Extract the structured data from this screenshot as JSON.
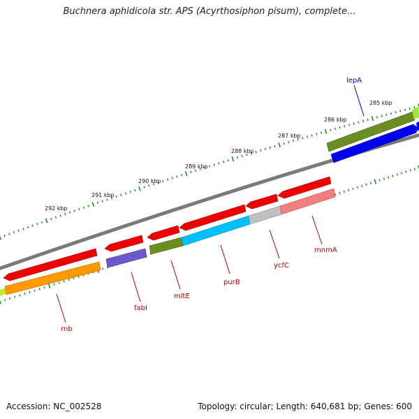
{
  "title": "Buchnera aphidicola str. APS (Acyrthosiphon pisum), complete...",
  "footer": {
    "accession": "Accession: NC_002528",
    "stats": "Topology: circular; Length: 640,681 bp; Genes: 600"
  },
  "scale": {
    "unit": "kbp",
    "labels": [
      "285 kbp",
      "286 kbp",
      "287 kbp",
      "288 kbp",
      "289 kbp",
      "290 kbp",
      "291 kbp",
      "292 kbp"
    ]
  },
  "gene_labels": [
    "lepA",
    "rnb",
    "fabI",
    "mltE",
    "purB",
    "ycfC",
    "mnmA"
  ],
  "colors": {
    "backbone": "#7a7a7a",
    "tick": "#228b22",
    "forward_strand": "#ee0000",
    "label_red": "#b00000",
    "label_blue": "#0000cc"
  }
}
